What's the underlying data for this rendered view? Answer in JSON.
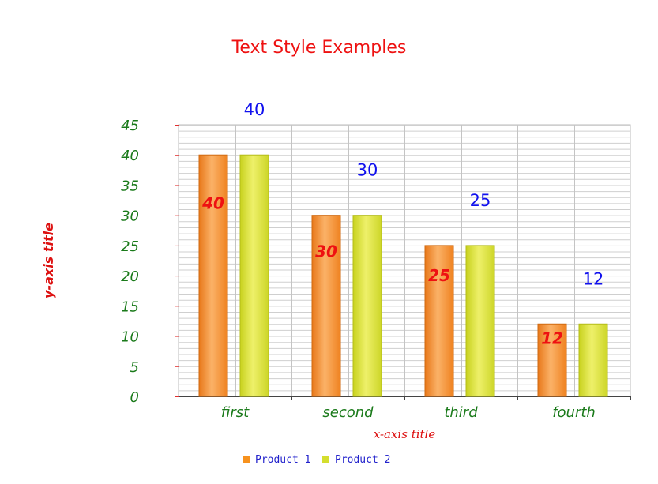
{
  "chart_data": {
    "type": "bar",
    "title": "Text Style Examples",
    "xlabel": "x-axis title",
    "ylabel": "y-axis title",
    "categories": [
      "first",
      "second",
      "third",
      "fourth"
    ],
    "series": [
      {
        "name": "Product 1",
        "values": [
          40,
          30,
          25,
          12
        ],
        "color": "#f7921e"
      },
      {
        "name": "Product 2",
        "values": [
          40,
          30,
          25,
          12
        ],
        "color": "#d4de2e"
      }
    ],
    "ylim": [
      0,
      45
    ],
    "yticks": [
      "0",
      "5",
      "10",
      "15",
      "20",
      "25",
      "30",
      "35",
      "40",
      "45"
    ],
    "grid": true,
    "legend": "bottom-center"
  }
}
